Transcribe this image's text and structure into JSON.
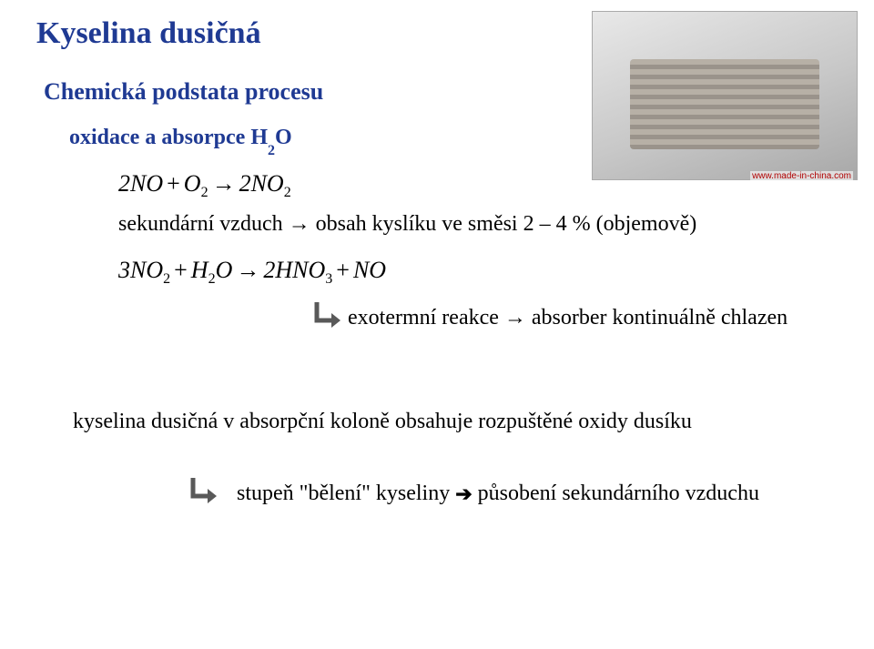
{
  "title": {
    "text": "Kyselina dusičná",
    "color": "#1f3a93"
  },
  "subtitle": {
    "text": "Chemická podstata procesu",
    "color": "#1f3a93"
  },
  "subsubtitle": {
    "text": "oxidace a absorpce  H",
    "sub": "2",
    "tail": "O",
    "color": "#1f3a93"
  },
  "eq1": {
    "parts": [
      "2NO",
      "+",
      "O",
      "→",
      "2NO"
    ],
    "subs": [
      "",
      "",
      "2",
      "",
      "2"
    ]
  },
  "note1": "sekundární vzduch → obsah kyslíku ve směsi 2 – 4 % (objemově)",
  "eq2": {
    "parts": [
      "3NO",
      "+",
      "H",
      "O",
      "→",
      "2HNO",
      "+",
      "NO"
    ],
    "subs": [
      "2",
      "",
      "2",
      "",
      "",
      "3",
      "",
      ""
    ]
  },
  "callout1": "exotermní reakce → absorber kontinuálně chlazen",
  "mid": "kyselina dusičná v absorpční koloně obsahuje rozpuštěné oxidy dusíku",
  "bottom": {
    "a": "stupeň \"bělení\" kyseliny",
    "b": "působení sekundárního vzduchu"
  },
  "photo_credit": "www.made-in-china.com",
  "arrow_right_color": "#000000",
  "l_arrow": {
    "stroke": "#595959",
    "head_fill": "#595959"
  }
}
